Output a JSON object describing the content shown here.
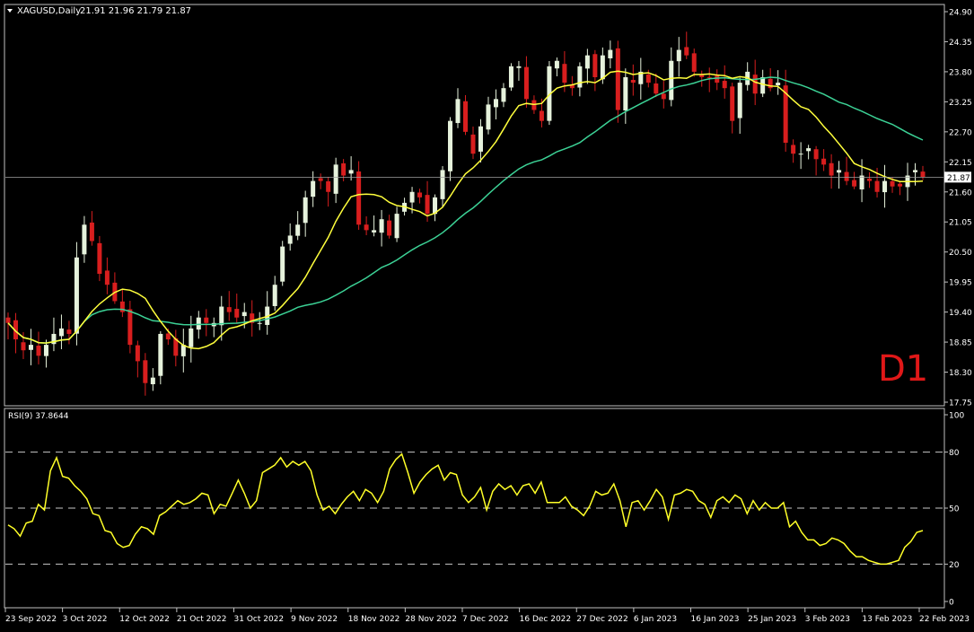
{
  "header": {
    "symbol_label": "XAGUSD,Daily",
    "ohlc_label": "21.91 21.96 21.79 21.87"
  },
  "rsi_label": "RSI(9) 37.8644",
  "timeframe_label": "D1",
  "colors": {
    "background": "#000000",
    "frame": "#c0c0c0",
    "bull_candle": "#e6f2dc",
    "bear_candle": "#d81e1e",
    "ma_fast": "#ffff3c",
    "ma_slow": "#3cd296",
    "rsi_line": "#ffff28",
    "text": "#ffffff",
    "d1_label": "#e01818"
  },
  "chart_data": [
    {
      "type": "candlestick",
      "symbol": "XAGUSD",
      "timeframe": "Daily",
      "current_price": 21.87,
      "ylim": [
        17.75,
        24.9
      ],
      "y_ticks": [
        "24.90",
        "24.35",
        "23.80",
        "23.25",
        "22.70",
        "22.15",
        "21.60",
        "21.05",
        "20.50",
        "19.95",
        "19.40",
        "18.85",
        "18.30",
        "17.75"
      ],
      "x_ticks": [
        "23 Sep 2022",
        "3 Oct 2022",
        "12 Oct 2022",
        "21 Oct 2022",
        "31 Oct 2022",
        "9 Nov 2022",
        "18 Nov 2022",
        "28 Nov 2022",
        "7 Dec 2022",
        "16 Dec 2022",
        "27 Dec 2022",
        "6 Jan 2023",
        "16 Jan 2023",
        "25 Jan 2023",
        "3 Feb 2023",
        "13 Feb 2023",
        "22 Feb 2023"
      ],
      "closes": [
        19.2,
        18.9,
        18.7,
        18.8,
        18.6,
        18.8,
        19.0,
        19.1,
        19.0,
        20.4,
        21.0,
        20.7,
        20.1,
        19.9,
        19.6,
        19.4,
        18.8,
        18.5,
        18.1,
        18.2,
        19.0,
        18.9,
        18.6,
        18.8,
        19.1,
        19.3,
        19.2,
        19.2,
        19.5,
        19.4,
        19.3,
        19.4,
        19.2,
        19.2,
        19.5,
        19.9,
        20.6,
        20.8,
        21.0,
        21.5,
        21.8,
        21.8,
        21.6,
        22.1,
        21.9,
        22.0,
        21.0,
        20.9,
        20.9,
        21.1,
        20.8,
        21.2,
        21.4,
        21.6,
        21.5,
        21.2,
        21.5,
        22.0,
        22.9,
        23.3,
        22.7,
        22.3,
        22.8,
        23.2,
        23.3,
        23.5,
        23.9,
        23.9,
        23.3,
        23.1,
        22.9,
        23.9,
        24.0,
        23.6,
        23.5,
        23.9,
        24.1,
        23.7,
        24.1,
        24.2,
        23.1,
        23.7,
        23.6,
        23.8,
        23.6,
        23.4,
        23.3,
        24.0,
        24.2,
        24.1,
        23.8,
        23.7,
        23.7,
        23.6,
        23.5,
        22.9,
        23.6,
        23.8,
        23.4,
        23.7,
        23.5,
        23.6,
        22.5,
        22.3,
        22.3,
        22.4,
        22.2,
        22.1,
        21.9,
        22.0,
        21.8,
        21.7,
        21.9,
        21.8,
        21.6,
        21.8,
        21.7,
        21.7,
        21.9,
        22.0,
        21.87
      ],
      "indicators": [
        "MA fast",
        "MA slow"
      ]
    },
    {
      "type": "line",
      "indicator": "RSI",
      "period": 9,
      "last_value": 37.8644,
      "ylim": [
        0,
        100
      ],
      "y_ticks": [
        "100",
        "80",
        "50",
        "20",
        "0"
      ],
      "levels": [
        80,
        50,
        20
      ],
      "values": [
        41,
        39,
        35,
        42,
        43,
        52,
        49,
        70,
        77,
        67,
        66,
        62,
        59,
        55,
        47,
        46,
        38,
        37,
        31,
        29,
        30,
        36,
        40,
        39,
        36,
        46,
        48,
        51,
        54,
        52,
        53,
        55,
        58,
        57,
        47,
        52,
        51,
        58,
        65,
        58,
        50,
        54,
        69,
        71,
        73,
        77,
        72,
        75,
        73,
        75,
        70,
        57,
        49,
        51,
        47,
        52,
        56,
        59,
        54,
        60,
        58,
        53,
        59,
        71,
        76,
        79,
        69,
        58,
        64,
        68,
        71,
        73,
        65,
        69,
        68,
        57,
        53,
        56,
        61,
        49,
        59,
        63,
        60,
        62,
        57,
        62,
        63,
        58,
        64,
        53,
        53,
        53,
        56,
        51,
        49,
        46,
        51,
        59,
        57,
        58,
        63,
        54,
        40,
        53,
        54,
        49,
        54,
        60,
        56,
        44,
        57,
        58,
        60,
        59,
        54,
        52,
        45,
        54,
        56,
        53,
        57,
        55,
        47,
        54,
        49,
        53,
        50,
        50,
        53,
        40,
        43,
        37,
        33,
        33,
        30,
        31,
        34,
        33,
        31,
        27,
        24,
        24,
        22,
        21,
        20,
        20,
        21,
        22,
        29,
        32,
        37,
        38
      ]
    }
  ]
}
